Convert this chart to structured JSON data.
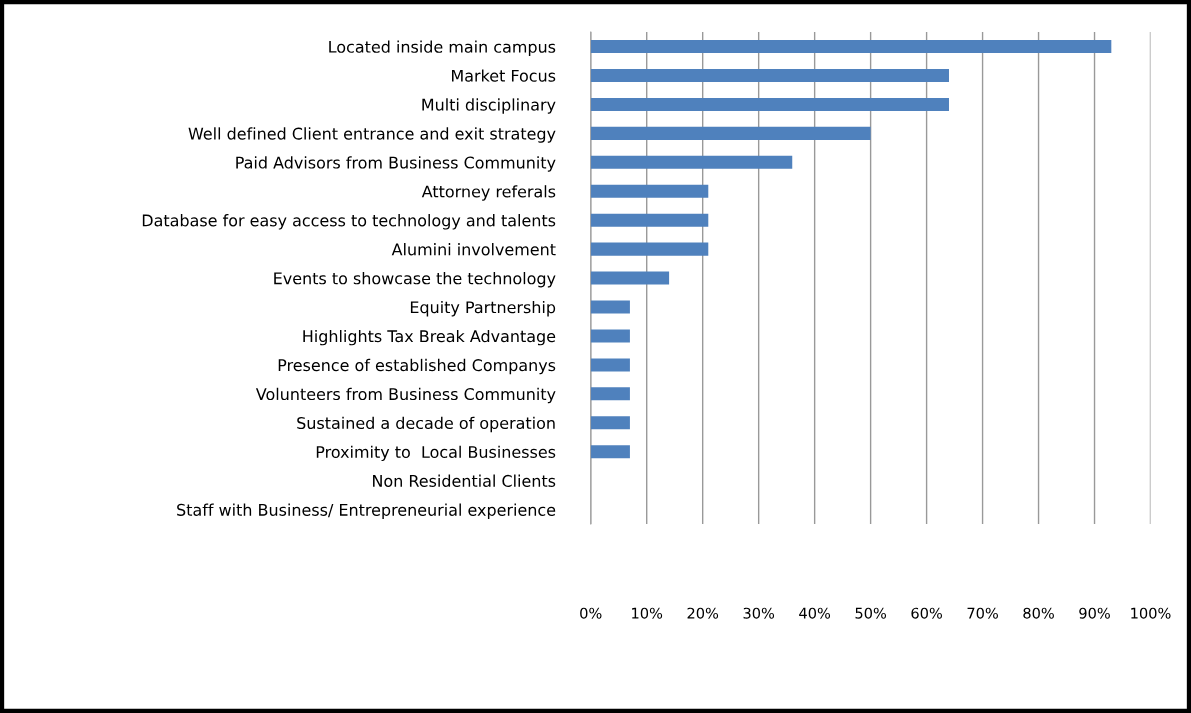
{
  "chart_data": {
    "type": "bar",
    "orientation": "horizontal",
    "categories": [
      "Located inside main campus",
      "Market Focus",
      "Multi disciplinary",
      "Well defined Client entrance and exit strategy",
      "Paid Advisors from Business Community",
      "Attorney referals",
      "Database for easy access to technology and talents",
      "Alumini involvement",
      "Events to showcase the technology",
      "Equity Partnership",
      "Highlights Tax Break Advantage",
      "Presence of established Companys",
      "Volunteers from Business Community",
      "Sustained a decade of operation",
      "Proximity to  Local Businesses",
      "Non Residential Clients",
      "Staff with Business/ Entrepreneurial experience"
    ],
    "values": [
      93,
      64,
      64,
      50,
      36,
      21,
      21,
      21,
      14,
      7,
      7,
      7,
      7,
      7,
      7,
      0,
      0
    ],
    "color": "#4f81bd",
    "xlim": [
      0,
      100
    ],
    "xticks": [
      {
        "value": 0,
        "label": "0%"
      },
      {
        "value": 10,
        "label": "10%"
      },
      {
        "value": 20,
        "label": "20%"
      },
      {
        "value": 30,
        "label": "30%"
      },
      {
        "value": 40,
        "label": "40%"
      },
      {
        "value": 50,
        "label": "50%"
      },
      {
        "value": 60,
        "label": "60%"
      },
      {
        "value": 70,
        "label": "70%"
      },
      {
        "value": 80,
        "label": "80%"
      },
      {
        "value": 90,
        "label": "90%"
      },
      {
        "value": 100,
        "label": "100%"
      }
    ],
    "grid": "x",
    "legend": false
  }
}
